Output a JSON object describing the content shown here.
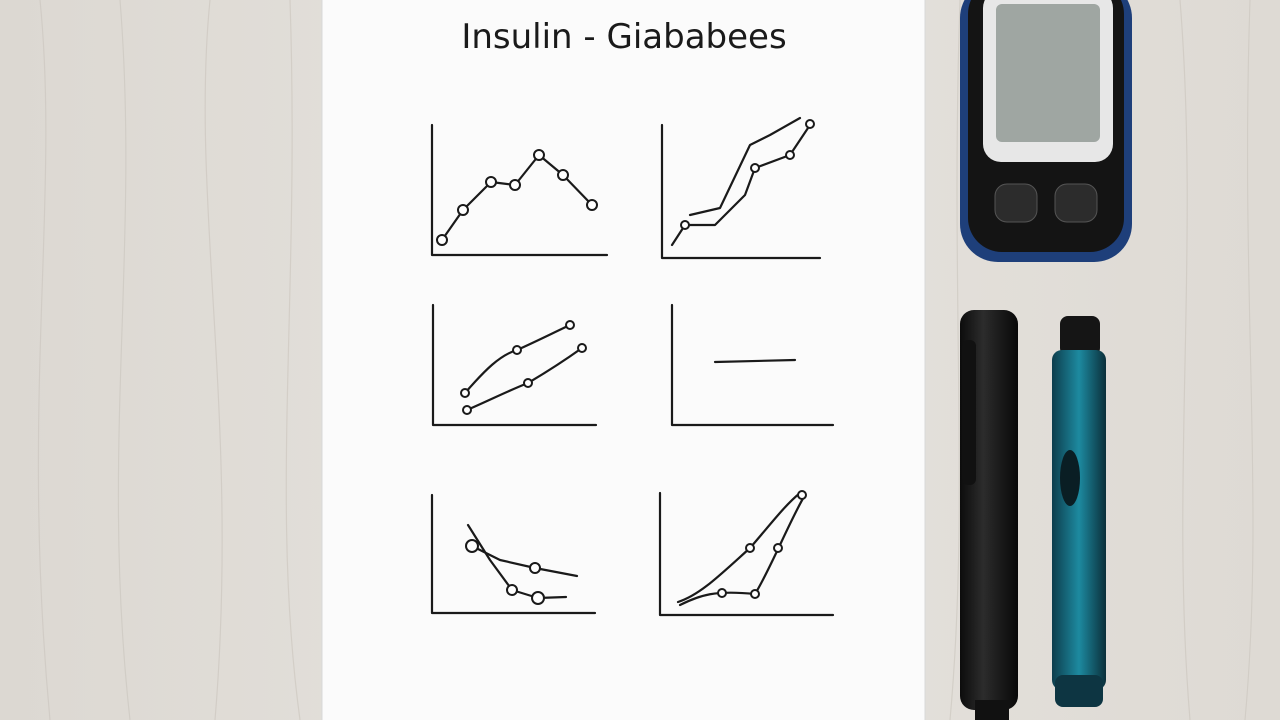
{
  "paper": {
    "title": "Insulin - Giababees"
  }
}
